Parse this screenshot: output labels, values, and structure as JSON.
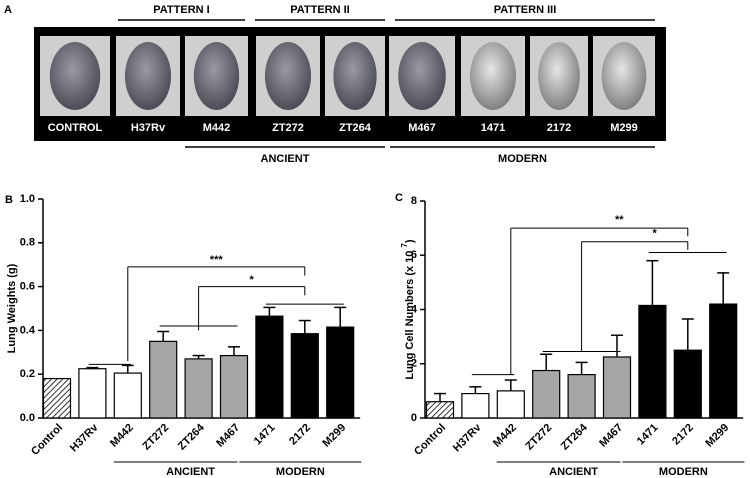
{
  "panel_a": {
    "letter": "A",
    "samples": [
      "CONTROL",
      "H37Rv",
      "M442",
      "ZT272",
      "ZT264",
      "M467",
      "1471",
      "2172",
      "M299"
    ],
    "patterns": [
      "PATTERN I",
      "PATTERN II",
      "PATTERN III"
    ],
    "lineages": [
      "ANCIENT",
      "MODERN"
    ]
  },
  "chart_data": [
    {
      "type": "bar",
      "letter": "B",
      "y_label": "Lung Weights (g)",
      "categories": [
        "Control",
        "H37Rv",
        "M442",
        "ZT272",
        "ZT264",
        "M467",
        "1471",
        "2172",
        "M299"
      ],
      "values": [
        0.18,
        0.225,
        0.205,
        0.35,
        0.27,
        0.285,
        0.465,
        0.385,
        0.415
      ],
      "errors": [
        0,
        0.005,
        0.035,
        0.045,
        0.015,
        0.04,
        0.04,
        0.06,
        0.09
      ],
      "colors": [
        "hatch",
        "#ffffff",
        "#ffffff",
        "#a6a6a6",
        "#a6a6a6",
        "#a6a6a6",
        "#000000",
        "#000000",
        "#000000"
      ],
      "ylim": [
        0,
        1.0
      ],
      "yticks": [
        {
          "value": 0,
          "label": "0.0"
        },
        0.2,
        0.4,
        0.6,
        0.8,
        {
          "value": 1.0,
          "label": "1.0"
        }
      ],
      "groups": [
        "ANCIENT",
        "MODERN"
      ],
      "annotations": [
        "***",
        "*"
      ]
    },
    {
      "type": "bar",
      "letter": "C",
      "y_label": "Lung Cell Numbers (x 10",
      "y_label_exp": "7",
      "y_label_end": ")",
      "categories": [
        "Control",
        "H37Rv",
        "M442",
        "ZT272",
        "ZT264",
        "M467",
        "1471",
        "2172",
        "M299"
      ],
      "values": [
        0.6,
        0.9,
        1.0,
        1.75,
        1.6,
        2.25,
        4.15,
        2.5,
        4.2
      ],
      "errors": [
        0.3,
        0.25,
        0.4,
        0.6,
        0.45,
        0.8,
        1.65,
        1.15,
        1.15
      ],
      "colors": [
        "hatch",
        "#ffffff",
        "#ffffff",
        "#a6a6a6",
        "#a6a6a6",
        "#a6a6a6",
        "#000000",
        "#000000",
        "#000000"
      ],
      "ylim": [
        0,
        8
      ],
      "yticks": [
        0,
        2,
        4,
        6,
        8
      ],
      "groups": [
        "ANCIENT",
        "MODERN"
      ],
      "annotations": [
        "**",
        "*"
      ]
    }
  ]
}
